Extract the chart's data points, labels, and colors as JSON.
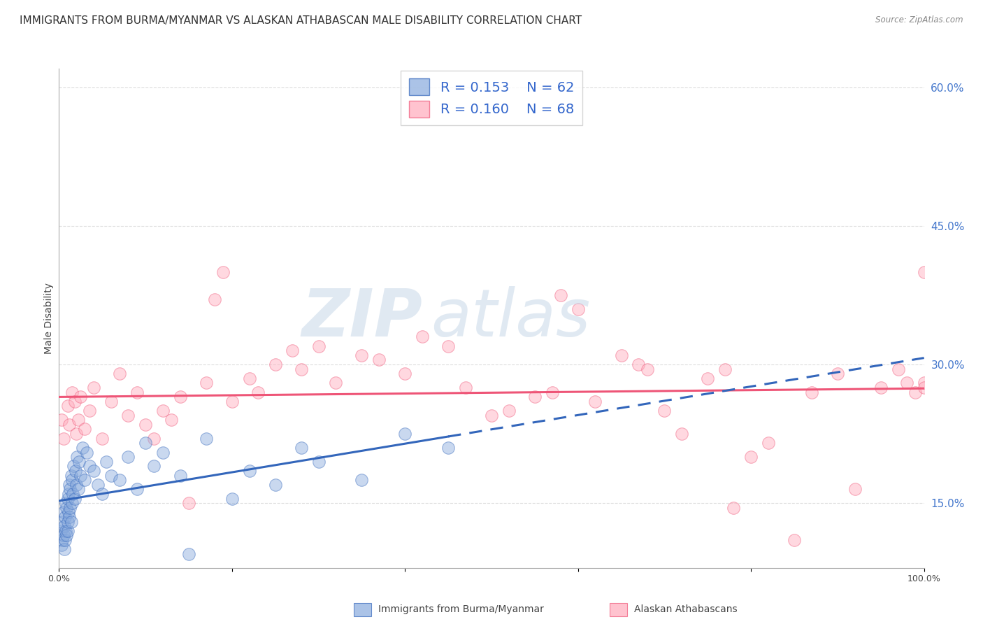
{
  "title": "IMMIGRANTS FROM BURMA/MYANMAR VS ALASKAN ATHABASCAN MALE DISABILITY CORRELATION CHART",
  "source": "Source: ZipAtlas.com",
  "ylabel": "Male Disability",
  "legend_label_blue": "Immigrants from Burma/Myanmar",
  "legend_label_pink": "Alaskan Athabascans",
  "r_blue": "0.153",
  "n_blue": "62",
  "r_pink": "0.160",
  "n_pink": "68",
  "xlim": [
    0.0,
    100.0
  ],
  "ylim": [
    8.0,
    62.0
  ],
  "yticks_right": [
    15.0,
    30.0,
    45.0,
    60.0
  ],
  "background_color": "#ffffff",
  "grid_color": "#cccccc",
  "blue_dot_color": "#88aadd",
  "pink_dot_color": "#ffaabb",
  "blue_line_color": "#3366bb",
  "pink_line_color": "#ee5577",
  "title_fontsize": 11,
  "axis_label_fontsize": 10,
  "tick_fontsize": 9,
  "blue_scatter_x": [
    0.2,
    0.3,
    0.4,
    0.4,
    0.5,
    0.5,
    0.6,
    0.6,
    0.7,
    0.7,
    0.8,
    0.8,
    0.9,
    0.9,
    1.0,
    1.0,
    1.0,
    1.1,
    1.1,
    1.2,
    1.2,
    1.3,
    1.3,
    1.4,
    1.4,
    1.5,
    1.5,
    1.6,
    1.7,
    1.8,
    1.9,
    2.0,
    2.1,
    2.2,
    2.3,
    2.5,
    2.7,
    3.0,
    3.2,
    3.5,
    4.0,
    4.5,
    5.0,
    5.5,
    6.0,
    7.0,
    8.0,
    9.0,
    10.0,
    11.0,
    12.0,
    14.0,
    15.0,
    17.0,
    20.0,
    22.0,
    25.0,
    28.0,
    30.0,
    35.0,
    40.0,
    45.0
  ],
  "blue_scatter_y": [
    12.0,
    10.5,
    11.0,
    13.0,
    11.5,
    14.0,
    10.0,
    12.5,
    11.0,
    13.5,
    12.0,
    15.0,
    11.5,
    14.5,
    12.0,
    15.5,
    13.0,
    16.0,
    14.0,
    13.5,
    17.0,
    14.5,
    16.5,
    13.0,
    18.0,
    15.0,
    17.5,
    16.0,
    19.0,
    15.5,
    18.5,
    17.0,
    20.0,
    16.5,
    19.5,
    18.0,
    21.0,
    17.5,
    20.5,
    19.0,
    18.5,
    17.0,
    16.0,
    19.5,
    18.0,
    17.5,
    20.0,
    16.5,
    21.5,
    19.0,
    20.5,
    18.0,
    9.5,
    22.0,
    15.5,
    18.5,
    17.0,
    21.0,
    19.5,
    17.5,
    22.5,
    21.0
  ],
  "pink_scatter_x": [
    0.3,
    0.5,
    1.0,
    1.2,
    1.5,
    1.8,
    2.0,
    2.2,
    2.5,
    3.0,
    3.5,
    4.0,
    5.0,
    6.0,
    7.0,
    8.0,
    9.0,
    10.0,
    11.0,
    12.0,
    13.0,
    14.0,
    15.0,
    17.0,
    18.0,
    19.0,
    20.0,
    22.0,
    23.0,
    25.0,
    27.0,
    28.0,
    30.0,
    32.0,
    35.0,
    37.0,
    40.0,
    42.0,
    45.0,
    47.0,
    50.0,
    52.0,
    55.0,
    57.0,
    58.0,
    60.0,
    62.0,
    65.0,
    67.0,
    68.0,
    70.0,
    72.0,
    75.0,
    77.0,
    78.0,
    80.0,
    82.0,
    85.0,
    87.0,
    90.0,
    92.0,
    95.0,
    97.0,
    98.0,
    99.0,
    100.0,
    100.0,
    100.0
  ],
  "pink_scatter_y": [
    24.0,
    22.0,
    25.5,
    23.5,
    27.0,
    26.0,
    22.5,
    24.0,
    26.5,
    23.0,
    25.0,
    27.5,
    22.0,
    26.0,
    29.0,
    24.5,
    27.0,
    23.5,
    22.0,
    25.0,
    24.0,
    26.5,
    15.0,
    28.0,
    37.0,
    40.0,
    26.0,
    28.5,
    27.0,
    30.0,
    31.5,
    29.5,
    32.0,
    28.0,
    31.0,
    30.5,
    29.0,
    33.0,
    32.0,
    27.5,
    24.5,
    25.0,
    26.5,
    27.0,
    37.5,
    36.0,
    26.0,
    31.0,
    30.0,
    29.5,
    25.0,
    22.5,
    28.5,
    29.5,
    14.5,
    20.0,
    21.5,
    11.0,
    27.0,
    29.0,
    16.5,
    27.5,
    29.5,
    28.0,
    27.0,
    28.0,
    27.5,
    40.0
  ]
}
